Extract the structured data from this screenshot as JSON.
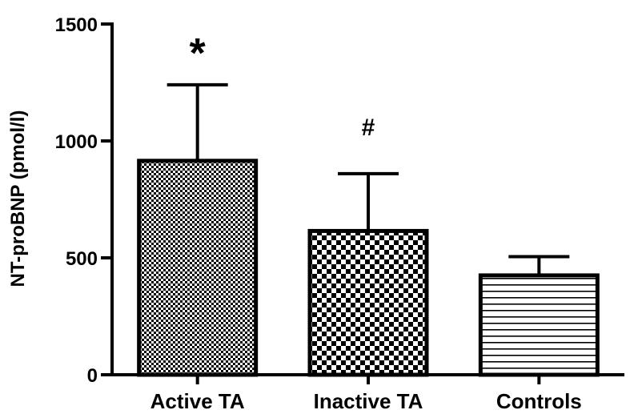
{
  "chart_data": {
    "type": "bar",
    "categories": [
      "Active TA",
      "Inactive TA",
      "Controls"
    ],
    "series": [
      {
        "values": [
          915,
          615,
          425
        ],
        "error_upper": [
          1240,
          860,
          505
        ]
      }
    ],
    "ylabel": "NT-proBNP (pmol/l)",
    "xlabel": "",
    "ylim": [
      0,
      1500
    ],
    "yticks": [
      0,
      500,
      1000,
      1500
    ],
    "ytick_labels": [
      "0",
      "500",
      "1000",
      "1500"
    ],
    "annotations": [
      {
        "category": "Active TA",
        "text": "*"
      },
      {
        "category": "Inactive TA",
        "text": "#"
      }
    ],
    "patterns": [
      "fine-checker",
      "coarse-checker",
      "horizontal-lines"
    ],
    "grid": false,
    "legend": "none"
  }
}
